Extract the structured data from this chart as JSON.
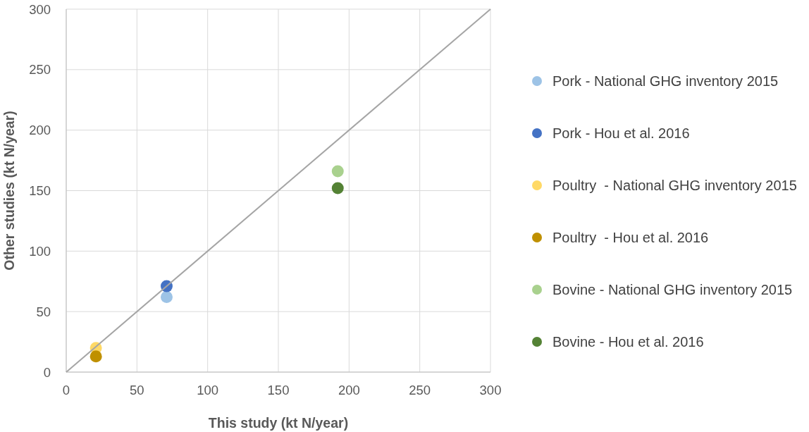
{
  "chart_data": {
    "type": "scatter",
    "xlabel": "This study (kt N/year)",
    "ylabel": "Other studies (kt N/year)",
    "xlim": [
      0,
      300
    ],
    "ylim": [
      0,
      300
    ],
    "xticks": [
      0,
      50,
      100,
      150,
      200,
      250,
      300
    ],
    "yticks": [
      0,
      50,
      100,
      150,
      200,
      250,
      300
    ],
    "grid": true,
    "legend": "right",
    "marker": "circle",
    "series": [
      {
        "name": "Pork - National GHG inventory 2015",
        "color": "#9dc3e6",
        "x": [
          71
        ],
        "values": [
          62
        ]
      },
      {
        "name": "Pork - Hou et al. 2016",
        "color": "#4472c4",
        "x": [
          71
        ],
        "values": [
          71
        ]
      },
      {
        "name": "Poultry  - National GHG inventory 2015",
        "color": "#ffd966",
        "x": [
          21
        ],
        "values": [
          20
        ]
      },
      {
        "name": "Poultry  - Hou et al. 2016",
        "color": "#bf9000",
        "x": [
          21
        ],
        "values": [
          13
        ]
      },
      {
        "name": "Bovine - National GHG inventory 2015",
        "color": "#a9d18e",
        "x": [
          192
        ],
        "values": [
          166
        ]
      },
      {
        "name": "Bovine - Hou et al. 2016",
        "color": "#548235",
        "x": [
          192
        ],
        "values": [
          152
        ]
      },
      {
        "type": "line",
        "color": "#a5a5a5",
        "x": [
          0,
          300
        ],
        "values": [
          0,
          300
        ],
        "line_style": "solid",
        "marker": "none"
      }
    ]
  }
}
